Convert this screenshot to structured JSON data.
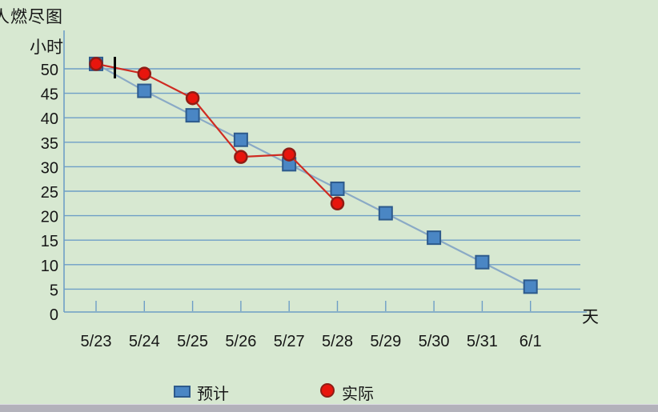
{
  "title": "人燃尽图",
  "y_axis_label": "小时",
  "x_axis_label": "天",
  "legend": {
    "planned_label": "预计",
    "actual_label": "实际"
  },
  "colors": {
    "background": "#d7e8d1",
    "grid": "#6e9ec6",
    "axis": "#6e9ec6",
    "planned_line": "#8aaac6",
    "planned_fill": "#4a86c4",
    "planned_border": "#2d5a8c",
    "actual_line": "#cf2b22",
    "actual_fill": "#e8150d",
    "actual_border": "#8f1d15",
    "text": "#161616",
    "bottom_bar": "#b3b2bb"
  },
  "chart_data": {
    "type": "line",
    "title": "人燃尽图",
    "xlabel": "天",
    "ylabel": "小时",
    "categories": [
      "5/23",
      "5/24",
      "5/25",
      "5/26",
      "5/27",
      "5/28",
      "5/29",
      "5/30",
      "5/31",
      "6/1"
    ],
    "series": [
      {
        "name": "预计",
        "marker": "square",
        "values": [
          51,
          45.5,
          40.5,
          35.5,
          30.5,
          25.5,
          20.5,
          15.5,
          10.5,
          5.5
        ]
      },
      {
        "name": "实际",
        "marker": "circle",
        "values": [
          51,
          49,
          44,
          32,
          32.5,
          22.5
        ]
      }
    ],
    "yticks": [
      0,
      5,
      10,
      15,
      20,
      25,
      30,
      35,
      40,
      45,
      50
    ],
    "ylim": [
      0,
      55
    ],
    "grid": true,
    "legend_position": "bottom"
  }
}
